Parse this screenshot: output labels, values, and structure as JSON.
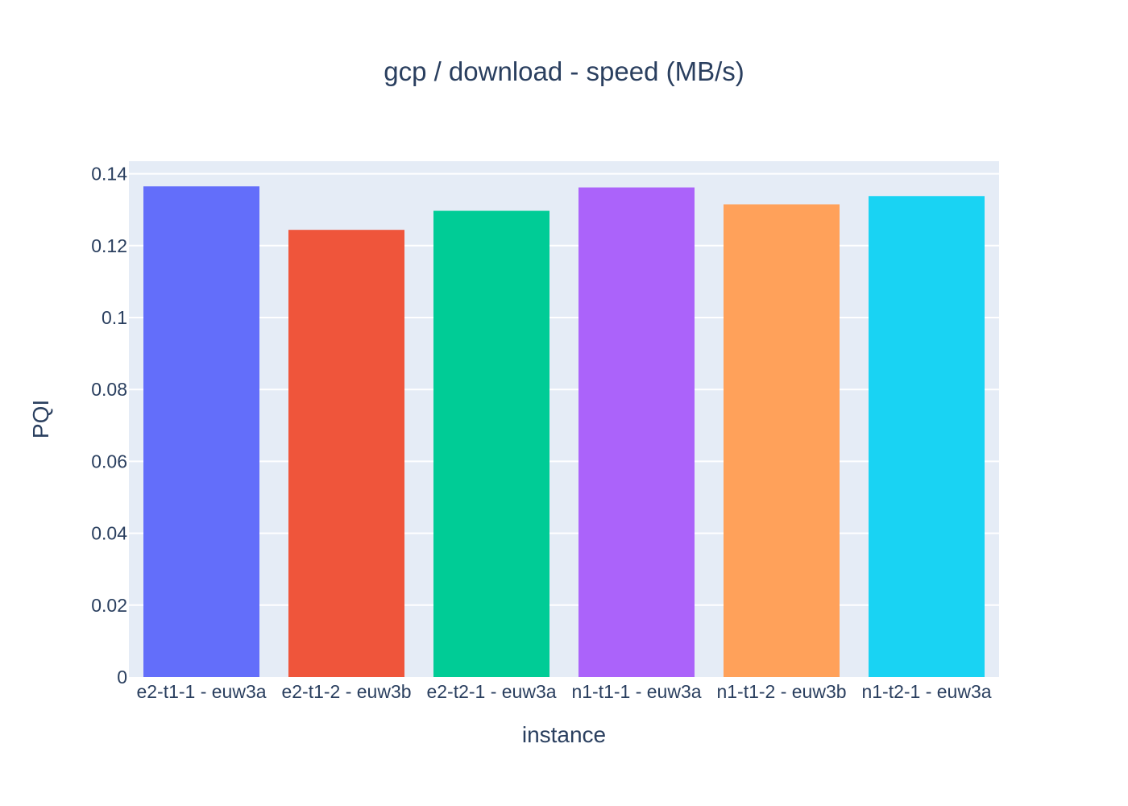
{
  "chart_data": {
    "type": "bar",
    "title": "gcp / download - speed (MB/s)",
    "xlabel": "instance",
    "ylabel": "PQI",
    "categories": [
      "e2-t1-1 - euw3a",
      "e2-t1-2 - euw3b",
      "e2-t2-1 - euw3a",
      "n1-t1-1 - euw3a",
      "n1-t1-2 - euw3b",
      "n1-t2-1 - euw3a"
    ],
    "values": [
      0.1365,
      0.1244,
      0.1297,
      0.1362,
      0.1315,
      0.1338
    ],
    "colors": [
      "#636efa",
      "#ef553b",
      "#00cc96",
      "#ab63fa",
      "#ffa15a",
      "#19d3f3"
    ],
    "ylim": [
      0,
      0.1435
    ],
    "yticks": [
      0,
      0.02,
      0.04,
      0.06,
      0.08,
      0.1,
      0.12,
      0.14
    ],
    "ytick_labels": [
      "0",
      "0.02",
      "0.04",
      "0.06",
      "0.08",
      "0.1",
      "0.12",
      "0.14"
    ],
    "grid": true,
    "plot_background": "#e5ecf6",
    "legend": "none"
  }
}
